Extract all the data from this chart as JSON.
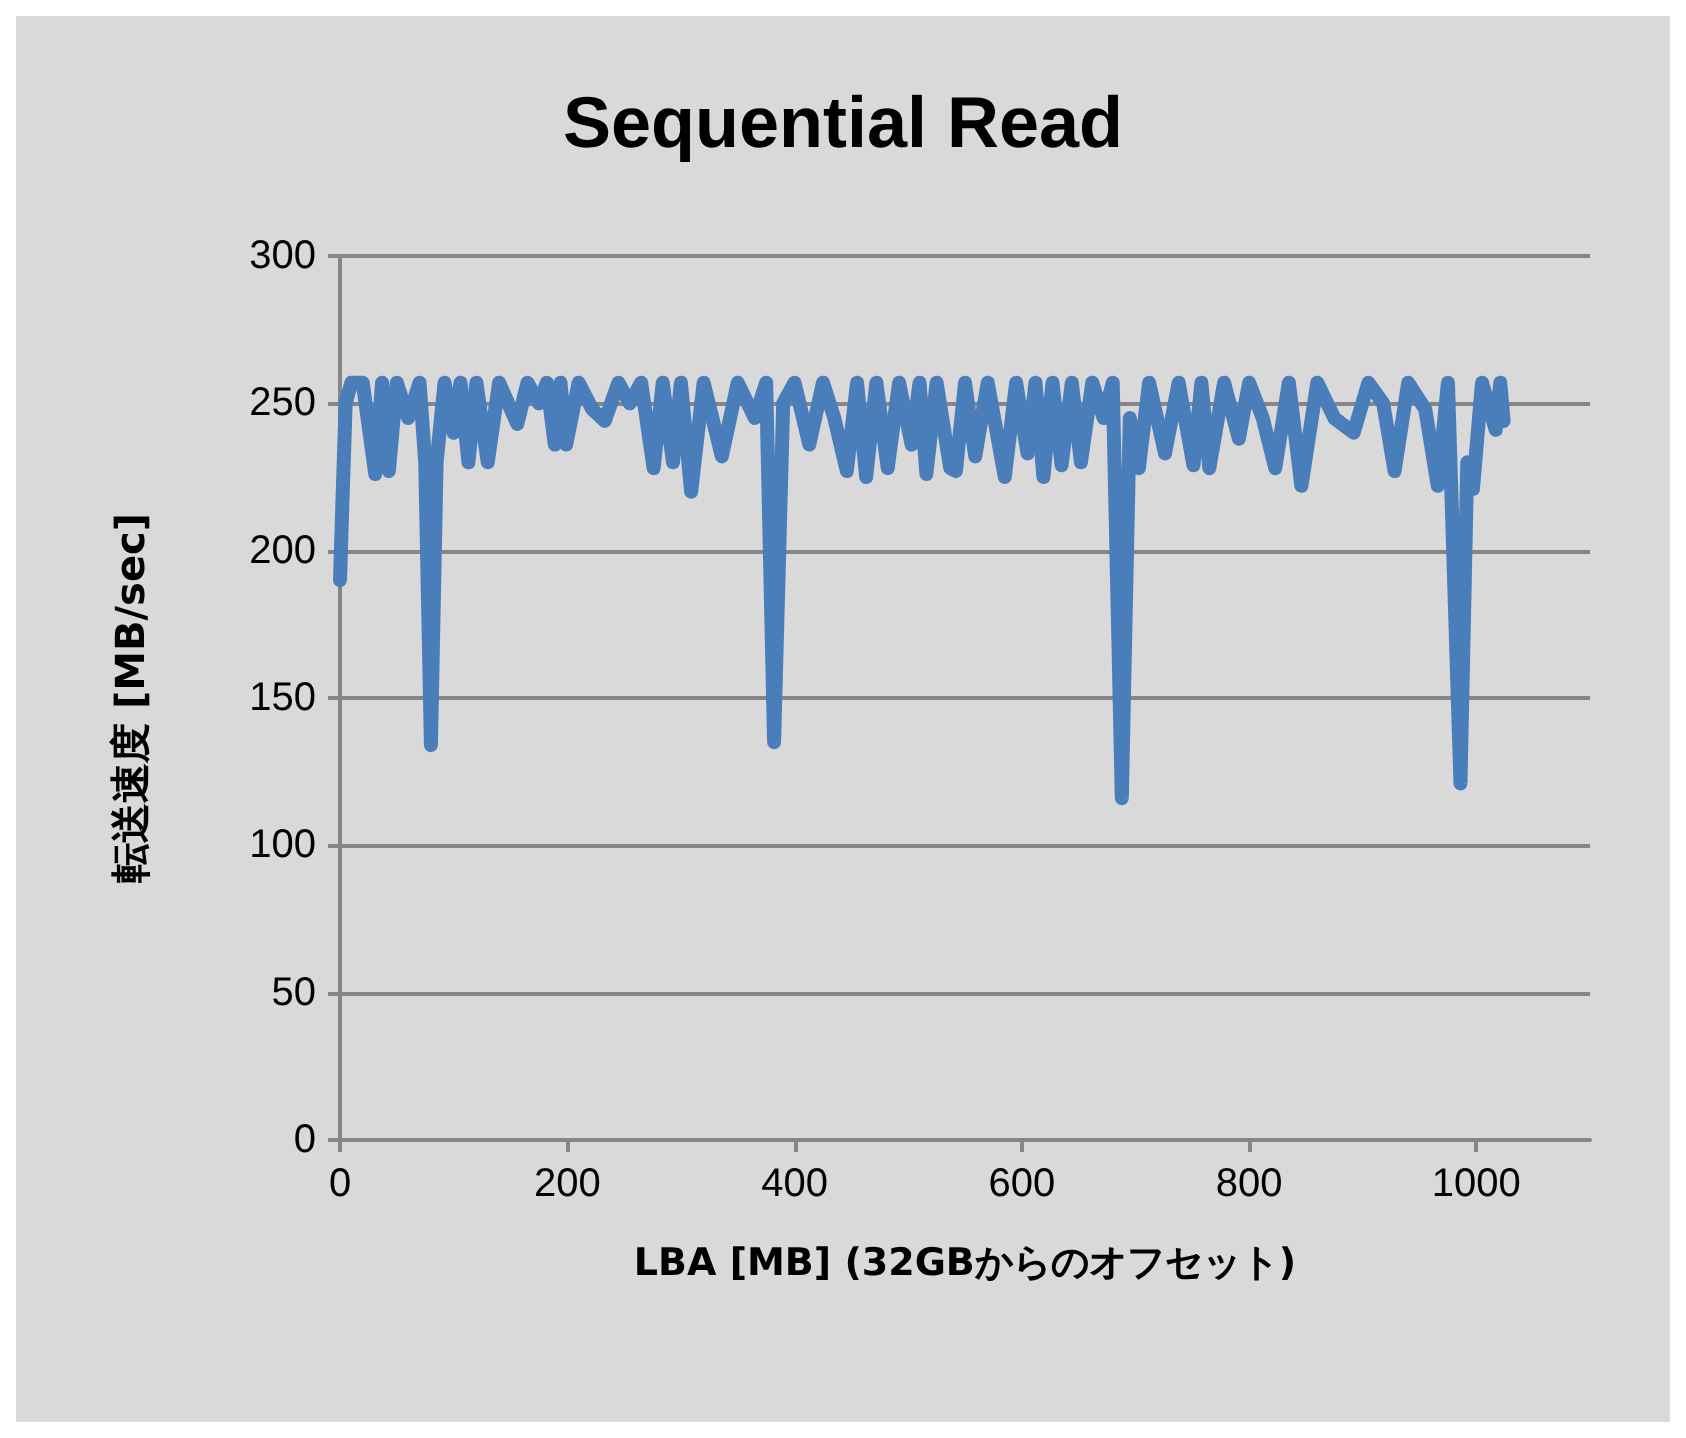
{
  "chart_data": {
    "type": "line",
    "title": "Sequential Read",
    "xlabel": "LBA [MB] (32GBからのオフセット)",
    "ylabel": "転送速度 [MB/sec]",
    "x": [
      0,
      2,
      5,
      10,
      20,
      31,
      37,
      43,
      50,
      60,
      70,
      75,
      80,
      85,
      92,
      100,
      106,
      113,
      120,
      130,
      140,
      148,
      156,
      165,
      175,
      182,
      189,
      194,
      199,
      210,
      222,
      233,
      245,
      255,
      265,
      276,
      284,
      293,
      300,
      309,
      320,
      336,
      350,
      365,
      375,
      382,
      390,
      400,
      413,
      425,
      435,
      446,
      455,
      463,
      472,
      482,
      492,
      503,
      510,
      516,
      525,
      537,
      542,
      550,
      559,
      570,
      585,
      595,
      605,
      612,
      619,
      627,
      635,
      644,
      652,
      662,
      672,
      680,
      688,
      695,
      703,
      712,
      726,
      738,
      751,
      758,
      765,
      778,
      791,
      800,
      812,
      823,
      835,
      846,
      860,
      875,
      892,
      905,
      918,
      928,
      940,
      955,
      966,
      975,
      986,
      992,
      997,
      1005,
      1017,
      1021,
      1024
    ],
    "series": [
      {
        "color": "#4a7ebb",
        "values": [
          190,
          215,
          250,
          257,
          257,
          226,
          257,
          227,
          257,
          245,
          257,
          230,
          134,
          230,
          257,
          240,
          257,
          230,
          257,
          230,
          257,
          250,
          243,
          257,
          250,
          257,
          236,
          257,
          236,
          257,
          248,
          244,
          257,
          250,
          257,
          228,
          257,
          230,
          257,
          220,
          257,
          232,
          257,
          245,
          257,
          135,
          250,
          257,
          236,
          257,
          245,
          227,
          257,
          225,
          257,
          228,
          257,
          236,
          257,
          226,
          257,
          228,
          227,
          257,
          232,
          257,
          225,
          257,
          233,
          257,
          225,
          257,
          229,
          257,
          230,
          257,
          245,
          257,
          116,
          245,
          228,
          257,
          233,
          257,
          229,
          257,
          228,
          257,
          238,
          257,
          245,
          228,
          257,
          222,
          257,
          245,
          240,
          257,
          250,
          227,
          257,
          248,
          222,
          257,
          121,
          230,
          221,
          257,
          241,
          257,
          244
        ]
      }
    ],
    "xlim": [
      0,
      1100
    ],
    "xticks": [
      0,
      200,
      400,
      600,
      800,
      1000
    ],
    "ylim": [
      0,
      300
    ],
    "yticks": [
      0,
      50,
      100,
      150,
      200,
      250,
      300
    ],
    "grid": "y",
    "marker": "none",
    "line_style": "solid"
  }
}
